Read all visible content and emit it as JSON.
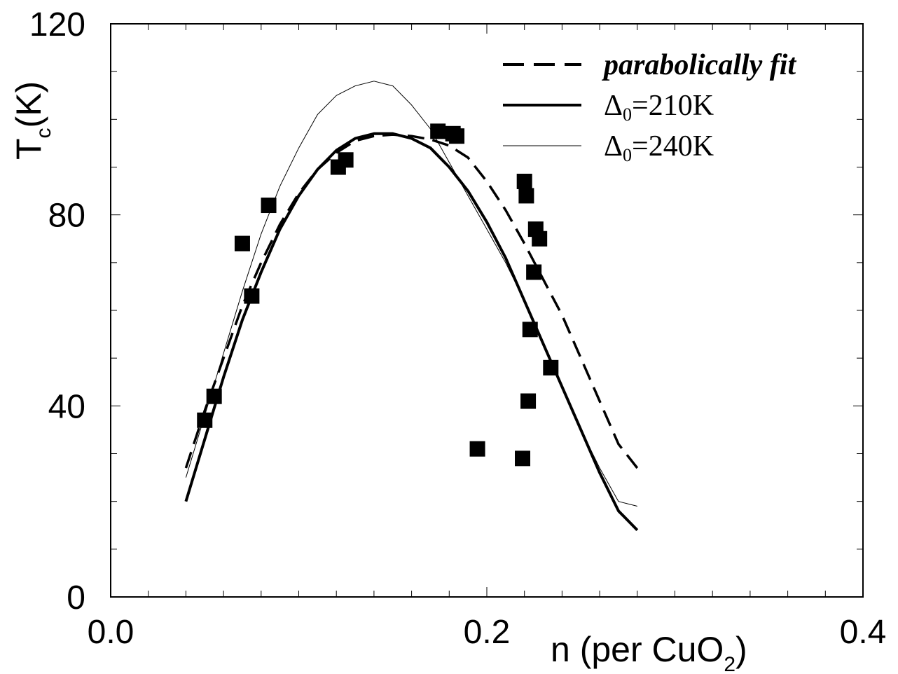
{
  "chart_data": {
    "type": "line",
    "xlim": [
      0.0,
      0.4
    ],
    "ylim": [
      0,
      120
    ],
    "x_ticks": [
      "0.0",
      "0.2",
      "0.4"
    ],
    "y_ticks": [
      "0",
      "40",
      "80",
      "120"
    ],
    "xlabel": "n (per CuO",
    "xlabel_sub": "2",
    "xlabel_end": ")",
    "ylabel": "T",
    "ylabel_sub": "c",
    "ylabel_end": "(K)",
    "grid": false,
    "legend_position": "top-right",
    "legend": [
      {
        "label": "parabolically fit",
        "style": "dashed",
        "prefix": "",
        "sub": "",
        "suffix": ""
      },
      {
        "label": "",
        "style": "solid-thick",
        "prefix": "Δ",
        "sub": "0",
        "suffix": "=210K"
      },
      {
        "label": "",
        "style": "solid-thin",
        "prefix": "Δ",
        "sub": "0",
        "suffix": "=240K"
      }
    ],
    "series": [
      {
        "style": "dashed",
        "x": [
          0.04,
          0.05,
          0.06,
          0.07,
          0.08,
          0.09,
          0.1,
          0.11,
          0.12,
          0.13,
          0.14,
          0.15,
          0.16,
          0.17,
          0.18,
          0.19,
          0.2,
          0.21,
          0.22,
          0.23,
          0.24,
          0.25,
          0.26,
          0.27,
          0.28
        ],
        "y": [
          27,
          39,
          50,
          61,
          70,
          78,
          84.5,
          89.5,
          93,
          95.5,
          96.5,
          96.8,
          96.5,
          95.8,
          94.5,
          92,
          87,
          81,
          74,
          66.5,
          59,
          50,
          41,
          32,
          27
        ]
      },
      {
        "style": "solid-thick",
        "x": [
          0.04,
          0.05,
          0.06,
          0.07,
          0.08,
          0.09,
          0.1,
          0.11,
          0.12,
          0.13,
          0.14,
          0.15,
          0.16,
          0.17,
          0.18,
          0.19,
          0.2,
          0.21,
          0.22,
          0.23,
          0.24,
          0.25,
          0.26,
          0.27,
          0.28
        ],
        "y": [
          20,
          33,
          46,
          58,
          68,
          77,
          84,
          89.5,
          93.5,
          96,
          97,
          97,
          96,
          94,
          90,
          85,
          78.5,
          71,
          62,
          53,
          44,
          35,
          26,
          18,
          14
        ]
      },
      {
        "style": "solid-thin",
        "x": [
          0.04,
          0.05,
          0.06,
          0.07,
          0.08,
          0.09,
          0.1,
          0.11,
          0.12,
          0.13,
          0.14,
          0.15,
          0.16,
          0.17,
          0.18,
          0.19,
          0.2,
          0.21,
          0.22,
          0.23,
          0.24,
          0.25,
          0.26,
          0.27,
          0.28
        ],
        "y": [
          25,
          38,
          51,
          64,
          76,
          86,
          94,
          101,
          105,
          107,
          108,
          107,
          103,
          98,
          91,
          84,
          77,
          70,
          62,
          53,
          44,
          35,
          27,
          20,
          19
        ]
      },
      {
        "style": "markers",
        "x": [
          0.05,
          0.055,
          0.07,
          0.075,
          0.084,
          0.121,
          0.125,
          0.174,
          0.182,
          0.184,
          0.195,
          0.219,
          0.22,
          0.221,
          0.222,
          0.223,
          0.225,
          0.226,
          0.228,
          0.234
        ],
        "y": [
          37,
          42,
          74,
          63,
          82,
          90,
          91.5,
          97.5,
          97,
          96.5,
          31,
          29,
          87,
          84,
          41,
          56,
          68,
          77,
          75,
          48
        ]
      }
    ]
  }
}
